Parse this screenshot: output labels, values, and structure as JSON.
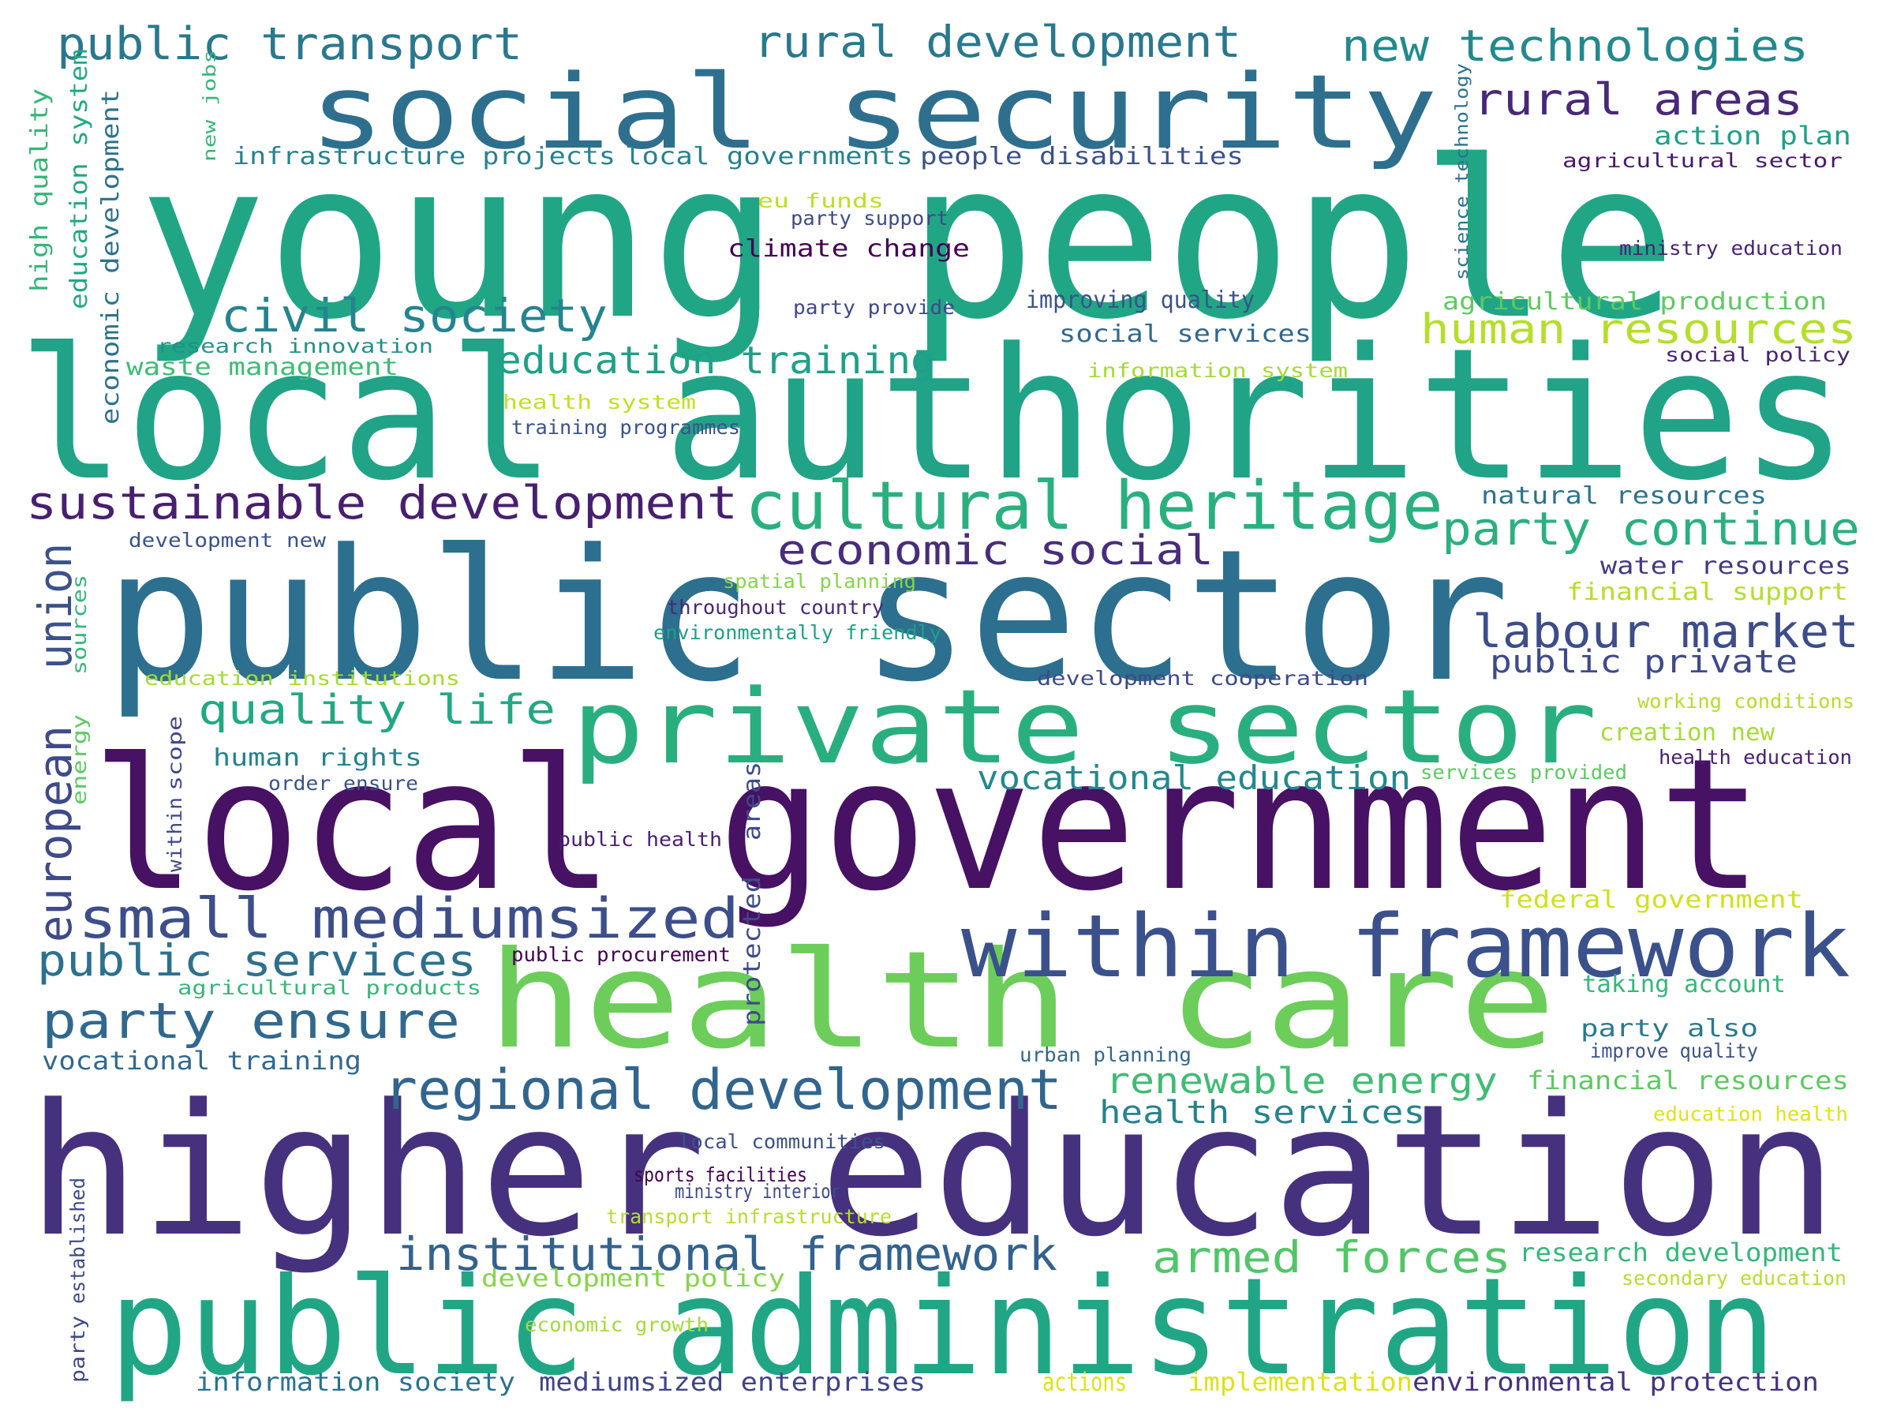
{
  "word_cloud": {
    "palette": "viridis",
    "background": "#ffffff",
    "phrases": [
      {
        "text": "young people",
        "color": "#21a685"
      },
      {
        "text": "local authorities",
        "color": "#20a386"
      },
      {
        "text": "public sector",
        "color": "#2d6f8e"
      },
      {
        "text": "higher education",
        "color": "#46317e"
      },
      {
        "text": "local government",
        "color": "#471164"
      },
      {
        "text": "public administration",
        "color": "#21a685"
      },
      {
        "text": "social security",
        "color": "#2e6f8e"
      },
      {
        "text": "health care",
        "color": "#6ccd5a"
      },
      {
        "text": "private sector",
        "color": "#29af7f"
      },
      {
        "text": "within framework",
        "color": "#3b518b"
      },
      {
        "text": "cultural heritage",
        "color": "#2ab07f"
      },
      {
        "text": "regional development",
        "color": "#32658e"
      },
      {
        "text": "small mediumsized",
        "color": "#3d4e8a"
      },
      {
        "text": "sustainable development",
        "color": "#481f70"
      },
      {
        "text": "institutional framework",
        "color": "#33628d"
      },
      {
        "text": "party continue",
        "color": "#2ab07f"
      },
      {
        "text": "labour market",
        "color": "#3d4d8a"
      },
      {
        "text": "party ensure",
        "color": "#31688e"
      },
      {
        "text": "armed forces",
        "color": "#52c569"
      },
      {
        "text": "public services",
        "color": "#2d708e"
      },
      {
        "text": "renewable energy",
        "color": "#3fbc73"
      },
      {
        "text": "civil society",
        "color": "#25848e"
      },
      {
        "text": "education training",
        "color": "#1fa088"
      },
      {
        "text": "economic social",
        "color": "#472d7b"
      },
      {
        "text": "quality life",
        "color": "#22a884"
      },
      {
        "text": "human resources",
        "color": "#b5de2b"
      },
      {
        "text": "public transport",
        "color": "#2a788e"
      },
      {
        "text": "rural development",
        "color": "#2a788e"
      },
      {
        "text": "new technologies",
        "color": "#23898e"
      },
      {
        "text": "rural areas",
        "color": "#482878"
      },
      {
        "text": "vocational education",
        "color": "#23898e"
      },
      {
        "text": "health services",
        "color": "#26828e"
      },
      {
        "text": "public private",
        "color": "#3e4a89"
      },
      {
        "text": "european",
        "color": "#3e4a89"
      },
      {
        "text": "union",
        "color": "#3b528b"
      },
      {
        "text": "information society",
        "color": "#2c728e"
      },
      {
        "text": "mediumsized enterprises",
        "color": "#414487"
      },
      {
        "text": "environmental protection",
        "color": "#46327e"
      },
      {
        "text": "actions",
        "color": "#dde318"
      },
      {
        "text": "implementation",
        "color": "#dde318"
      },
      {
        "text": "vocational training",
        "color": "#31688e"
      },
      {
        "text": "financial resources",
        "color": "#5ec962"
      },
      {
        "text": "research development",
        "color": "#35b779"
      },
      {
        "text": "action plan",
        "color": "#1fa088"
      },
      {
        "text": "agricultural production",
        "color": "#5ec962"
      },
      {
        "text": "infrastructure projects",
        "color": "#26828e"
      },
      {
        "text": "local governments",
        "color": "#26828e"
      },
      {
        "text": "people disabilities",
        "color": "#3b528b"
      },
      {
        "text": "agricultural sector",
        "color": "#481a6c"
      },
      {
        "text": "eu funds",
        "color": "#bddf26"
      },
      {
        "text": "party support",
        "color": "#3e4a89"
      },
      {
        "text": "climate change",
        "color": "#440154"
      },
      {
        "text": "ministry education",
        "color": "#482475"
      },
      {
        "text": "improving quality",
        "color": "#3b528b"
      },
      {
        "text": "social services",
        "color": "#31688e"
      },
      {
        "text": "research innovation",
        "color": "#21918c"
      },
      {
        "text": "party provide",
        "color": "#3e4a89"
      },
      {
        "text": "social policy",
        "color": "#482475"
      },
      {
        "text": "waste management",
        "color": "#3dbc74"
      },
      {
        "text": "information system",
        "color": "#a5db36"
      },
      {
        "text": "health system",
        "color": "#c2df23"
      },
      {
        "text": "training programmes",
        "color": "#3b528b"
      },
      {
        "text": "natural resources",
        "color": "#2c728e"
      },
      {
        "text": "development new",
        "color": "#3b528b"
      },
      {
        "text": "water resources",
        "color": "#443983"
      },
      {
        "text": "financial support",
        "color": "#b5de2b"
      },
      {
        "text": "spatial planning",
        "color": "#86d549"
      },
      {
        "text": "throughout country",
        "color": "#482878"
      },
      {
        "text": "environmentally friendly",
        "color": "#1fa088"
      },
      {
        "text": "education institutions",
        "color": "#a5db36"
      },
      {
        "text": "development cooperation",
        "color": "#3e4a89"
      },
      {
        "text": "sources",
        "color": "#35b779"
      },
      {
        "text": "energy",
        "color": "#5ec962"
      },
      {
        "text": "working conditions",
        "color": "#b5de2b"
      },
      {
        "text": "creation new",
        "color": "#a5db36"
      },
      {
        "text": "human rights",
        "color": "#26828e"
      },
      {
        "text": "order ensure",
        "color": "#3b528b"
      },
      {
        "text": "scope",
        "color": "#3e4a89"
      },
      {
        "text": "within",
        "color": "#3e4a89"
      },
      {
        "text": "areas",
        "color": "#3e4a89"
      },
      {
        "text": "protected",
        "color": "#3e4a89"
      },
      {
        "text": "services provided",
        "color": "#5ec962"
      },
      {
        "text": "health education",
        "color": "#481f70"
      },
      {
        "text": "public health",
        "color": "#481f70"
      },
      {
        "text": "federal government",
        "color": "#d0e11c"
      },
      {
        "text": "public procurement",
        "color": "#440154"
      },
      {
        "text": "agricultural products",
        "color": "#35b779"
      },
      {
        "text": "taking account",
        "color": "#35b779"
      },
      {
        "text": "party also",
        "color": "#2a788e"
      },
      {
        "text": "improve quality",
        "color": "#3b528b"
      },
      {
        "text": "urban planning",
        "color": "#31688e"
      },
      {
        "text": "education health",
        "color": "#dde318"
      },
      {
        "text": "local communities",
        "color": "#3b528b"
      },
      {
        "text": "sports facilities",
        "color": "#440154"
      },
      {
        "text": "ministry interior",
        "color": "#3e4a89"
      },
      {
        "text": "transport infrastructure",
        "color": "#b5de2b"
      },
      {
        "text": "development policy",
        "color": "#86d549"
      },
      {
        "text": "secondary education",
        "color": "#b5de2b"
      },
      {
        "text": "economic growth",
        "color": "#a5db36"
      },
      {
        "text": "established",
        "color": "#3e4a89"
      },
      {
        "text": "party",
        "color": "#3e4a89"
      },
      {
        "text": "high quality",
        "color": "#35b779"
      },
      {
        "text": "education system",
        "color": "#22a884"
      },
      {
        "text": "economic development",
        "color": "#2c728e"
      },
      {
        "text": "new jobs",
        "color": "#35b779"
      },
      {
        "text": "science technology",
        "color": "#2c728e"
      }
    ]
  }
}
